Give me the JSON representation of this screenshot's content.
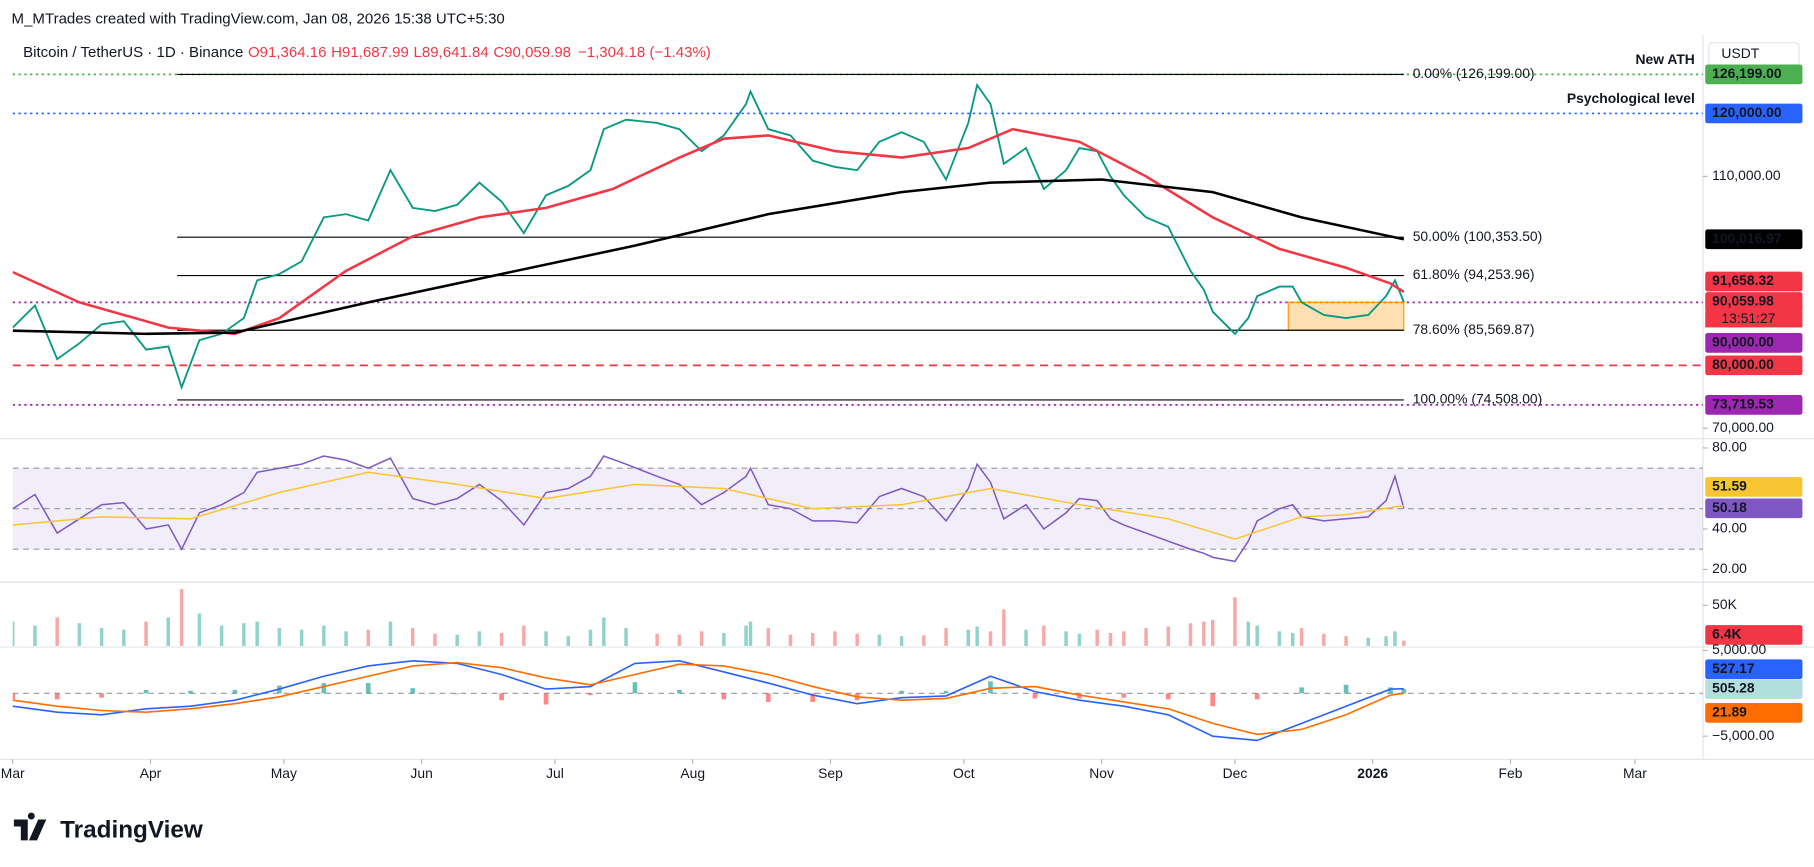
{
  "chart_data": {
    "type": "line",
    "header": "M_MTrades created with TradingView.com, Jan 08, 2026 15:38 UTC+5:30",
    "symbol": "Bitcoin / TetherUS · 1D · Binance",
    "ohlc": [
      "O91,364.16",
      "H91,687.99",
      "L89,641.84",
      "C90,059.98",
      "−1,304.18 (−1.43%)"
    ],
    "currency": "USDT",
    "footer": "TradingView",
    "xlim": [
      0,
      380.3
    ],
    "xticks": [
      {
        "value": 0,
        "label": "Mar"
      },
      {
        "value": 31,
        "label": "Apr"
      },
      {
        "value": 61,
        "label": "May"
      },
      {
        "value": 92,
        "label": "Jun"
      },
      {
        "value": 122,
        "label": "Jul"
      },
      {
        "value": 153,
        "label": "Aug"
      },
      {
        "value": 184,
        "label": "Sep"
      },
      {
        "value": 214,
        "label": "Oct"
      },
      {
        "value": 245,
        "label": "Nov"
      },
      {
        "value": 275,
        "label": "Dec"
      },
      {
        "value": 306,
        "label": "2026"
      },
      {
        "value": 337,
        "label": "Feb"
      },
      {
        "value": 365,
        "label": "Mar"
      }
    ],
    "x": [
      0,
      5,
      10,
      15,
      20,
      25,
      30,
      35,
      38,
      42,
      47,
      52,
      55,
      60,
      65,
      70,
      75,
      80,
      85,
      90,
      95,
      100,
      105,
      110,
      115,
      120,
      125,
      130,
      133,
      138,
      145,
      150,
      155,
      160,
      165,
      166,
      170,
      175,
      180,
      185,
      190,
      195,
      200,
      205,
      210,
      215,
      217,
      220,
      223,
      228,
      232,
      237,
      240,
      244,
      247,
      250,
      255,
      260,
      265,
      268,
      270,
      275,
      278,
      280,
      285,
      288,
      290,
      295,
      300,
      305,
      309,
      311,
      313
    ],
    "price": {
      "ylim": [
        68530,
        131580
      ],
      "yticks": [
        {
          "value": 110000,
          "label": "110,000.00"
        },
        {
          "value": 70000,
          "label": "70,000.00"
        }
      ],
      "series": [
        {
          "color": "#089981",
          "values": [
            86000,
            89500,
            81000,
            83500,
            86500,
            87000,
            82500,
            83000,
            76500,
            84000,
            85000,
            87500,
            93500,
            94500,
            96500,
            103500,
            104000,
            103000,
            111000,
            105000,
            104500,
            105500,
            109000,
            106000,
            101000,
            107000,
            108500,
            111000,
            117500,
            119000,
            118500,
            117500,
            114000,
            116500,
            121500,
            123500,
            117500,
            116500,
            112500,
            111500,
            111000,
            115500,
            117000,
            115500,
            109500,
            118500,
            124500,
            121500,
            112000,
            114500,
            108000,
            111000,
            114500,
            114000,
            110000,
            107000,
            103500,
            102000,
            95000,
            92000,
            88500,
            85000,
            87500,
            91000,
            92500,
            92500,
            90000,
            88000,
            87500,
            88000,
            91000,
            93500,
            90060
          ]
        },
        {
          "color": "#f23645",
          "x": [
            0,
            15,
            35,
            50,
            60,
            75,
            90,
            105,
            120,
            135,
            150,
            160,
            170,
            185,
            200,
            215,
            225,
            240,
            255,
            270,
            285,
            300,
            310,
            313
          ],
          "values": [
            94800,
            90000,
            86000,
            85000,
            87500,
            95000,
            100500,
            103500,
            105000,
            108000,
            113000,
            116000,
            116500,
            114000,
            113000,
            114500,
            117500,
            115500,
            110000,
            103500,
            98500,
            95500,
            93000,
            91658.32
          ]
        },
        {
          "color": "#000000",
          "x": [
            0,
            30,
            50,
            80,
            110,
            140,
            170,
            200,
            220,
            245,
            270,
            290,
            313
          ],
          "values": [
            85500,
            85000,
            85200,
            90000,
            94500,
            99000,
            104000,
            107500,
            109000,
            109500,
            107500,
            103500,
            100016.97
          ]
        }
      ],
      "levels": [
        {
          "value": 126199,
          "label": "0.00% (126,199.00)"
        },
        {
          "value": 100353.5,
          "label": "50.00% (100,353.50)"
        },
        {
          "value": 94253.96,
          "label": "61.80% (94,253.96)"
        },
        {
          "value": 85569.87,
          "label": "78.60% (85,569.87)"
        },
        {
          "value": 74508,
          "label": "100.00% (74,508.00)"
        }
      ],
      "lines": [
        {
          "value": 126199,
          "color": "#4caf50",
          "style": "dotted",
          "note": "New ATH"
        },
        {
          "value": 120000,
          "color": "#2962ff",
          "style": "dotted",
          "note": "Psychological level"
        },
        {
          "value": 90000,
          "color": "#9c27b0",
          "style": "dotted"
        },
        {
          "value": 80000,
          "color": "#f23645",
          "style": "dashed"
        },
        {
          "value": 73719.53,
          "color": "#9c27b0",
          "style": "dotted"
        }
      ],
      "zone": {
        "values": [
          85569.87,
          90000
        ],
        "color": "#ff9800"
      },
      "labels": [
        {
          "value": 126199,
          "label": "126,199.00",
          "color": "#4caf50"
        },
        {
          "value": 120000,
          "label": "120,000.00",
          "color": "#2962ff"
        },
        {
          "value": 100016.97,
          "label": "100,016.97",
          "color": "#000000"
        },
        {
          "value": 91658.32,
          "label": "91,658.32",
          "color": "#f23645"
        },
        {
          "value": 90059.98,
          "label": "90,059.98",
          "color": "#f23645"
        },
        {
          "value": 90000,
          "label": "90,000.00",
          "color": "#9c27b0"
        },
        {
          "value": 80000,
          "label": "80,000.00",
          "color": "#f23645"
        },
        {
          "value": 73719.53,
          "label": "73,719.53",
          "color": "#9c27b0"
        }
      ],
      "countdown": "13:51:27"
    },
    "rsi": {
      "ylim": [
        15.4,
        84
      ],
      "yticks": [
        {
          "value": 80,
          "label": "80.00"
        },
        {
          "value": 40,
          "label": "40.00"
        },
        {
          "value": 20,
          "label": "20.00"
        }
      ],
      "bands": [
        70,
        50,
        30
      ],
      "series": [
        {
          "color": "#7e57c2",
          "values": [
            50,
            57,
            38,
            45,
            52,
            53,
            40,
            42,
            30,
            48,
            52,
            58,
            68,
            70,
            72,
            76,
            74,
            70,
            75,
            55,
            52,
            55,
            62,
            54,
            42,
            58,
            60,
            66,
            76,
            72,
            66,
            62,
            52,
            58,
            66,
            70,
            52,
            50,
            44,
            44,
            43,
            56,
            60,
            56,
            44,
            60,
            72,
            63,
            45,
            52,
            40,
            48,
            55,
            54,
            45,
            42,
            38,
            34,
            30,
            28,
            26,
            24,
            34,
            44,
            50,
            52,
            46,
            44,
            45,
            46,
            54,
            66,
            50.18
          ]
        },
        {
          "color": "#f7c531",
          "x": [
            0,
            20,
            40,
            60,
            80,
            100,
            120,
            140,
            160,
            180,
            200,
            220,
            240,
            260,
            275,
            290,
            300,
            313
          ],
          "values": [
            42,
            46,
            45,
            58,
            68,
            62,
            55,
            62,
            60,
            50,
            52,
            60,
            52,
            45,
            35,
            46,
            47,
            51.59
          ]
        }
      ],
      "labels": [
        {
          "value": 51.59,
          "label": "51.59",
          "color": "#f7c531"
        },
        {
          "value": 50.18,
          "label": "50.18",
          "color": "#7e57c2"
        }
      ]
    },
    "volume": {
      "ylim": [
        0,
        75700
      ],
      "yticks": [
        {
          "value": 50000,
          "label": "50K"
        }
      ],
      "up_color": "#8fd3cb",
      "down_color": "#f7a9a7",
      "values": [
        30000,
        25000,
        35000,
        28000,
        22000,
        20000,
        30000,
        35000,
        70000,
        40000,
        25000,
        28000,
        30000,
        22000,
        20000,
        25000,
        18000,
        20000,
        30000,
        22000,
        15000,
        14000,
        18000,
        16000,
        25000,
        18000,
        12000,
        20000,
        35000,
        22000,
        15000,
        14000,
        18000,
        16000,
        25000,
        30000,
        22000,
        14000,
        16000,
        18000,
        15000,
        14000,
        12000,
        13000,
        22000,
        20000,
        24000,
        18000,
        45000,
        20000,
        25000,
        18000,
        15000,
        20000,
        16000,
        18000,
        22000,
        24000,
        28000,
        30000,
        32000,
        60000,
        30000,
        25000,
        18000,
        16000,
        22000,
        15000,
        12000,
        10000,
        12000,
        18000,
        6400
      ],
      "labels": [
        {
          "value": 6400,
          "label": "6.4K",
          "color": "#f23645"
        }
      ]
    },
    "macd": {
      "ylim": [
        -7570,
        5270
      ],
      "yticks": [
        {
          "value": 5000,
          "label": "5,000.00"
        },
        {
          "value": -5000,
          "label": "−5,000.00"
        }
      ],
      "x": [
        0,
        10,
        20,
        30,
        40,
        50,
        60,
        70,
        80,
        90,
        100,
        110,
        120,
        130,
        140,
        150,
        160,
        170,
        180,
        190,
        200,
        210,
        220,
        230,
        240,
        250,
        260,
        270,
        280,
        290,
        300,
        310,
        313
      ],
      "series": [
        {
          "color": "#2962ff",
          "values": [
            -1500,
            -2200,
            -2500,
            -1800,
            -1500,
            -800,
            500,
            2000,
            3200,
            3800,
            3500,
            2200,
            500,
            800,
            3500,
            3800,
            2500,
            1200,
            -200,
            -1200,
            -500,
            -300,
            2000,
            200,
            -800,
            -1500,
            -2500,
            -5000,
            -5500,
            -3500,
            -1500,
            500,
            527.17
          ]
        },
        {
          "color": "#ff6d00",
          "values": [
            -800,
            -1500,
            -2000,
            -2200,
            -1800,
            -1200,
            -400,
            800,
            2000,
            3200,
            3600,
            3000,
            1800,
            1000,
            2200,
            3400,
            3200,
            2200,
            800,
            -400,
            -800,
            -600,
            600,
            800,
            -200,
            -1000,
            -1800,
            -3500,
            -4800,
            -4200,
            -2500,
            -200,
            21.89
          ]
        }
      ],
      "histogram": {
        "pos_color": "#26a69a",
        "neg_color": "#ff5252",
        "values": [
          -700,
          -700,
          -500,
          400,
          300,
          400,
          900,
          1200,
          1200,
          600,
          -100,
          -800,
          -1300,
          -200,
          1300,
          400,
          -700,
          -1000,
          -1000,
          -800,
          300,
          300,
          1400,
          -600,
          -600,
          -500,
          -700,
          -1500,
          -700,
          700,
          1000,
          700,
          505.28
        ]
      },
      "labels": [
        {
          "value": 527.17,
          "label": "527.17",
          "color": "#2962ff"
        },
        {
          "value": 505.28,
          "label": "505.28",
          "color": "#b2dfdb",
          "text_color": "#131722"
        },
        {
          "value": 21.89,
          "label": "21.89",
          "color": "#ff6d00"
        }
      ]
    }
  }
}
